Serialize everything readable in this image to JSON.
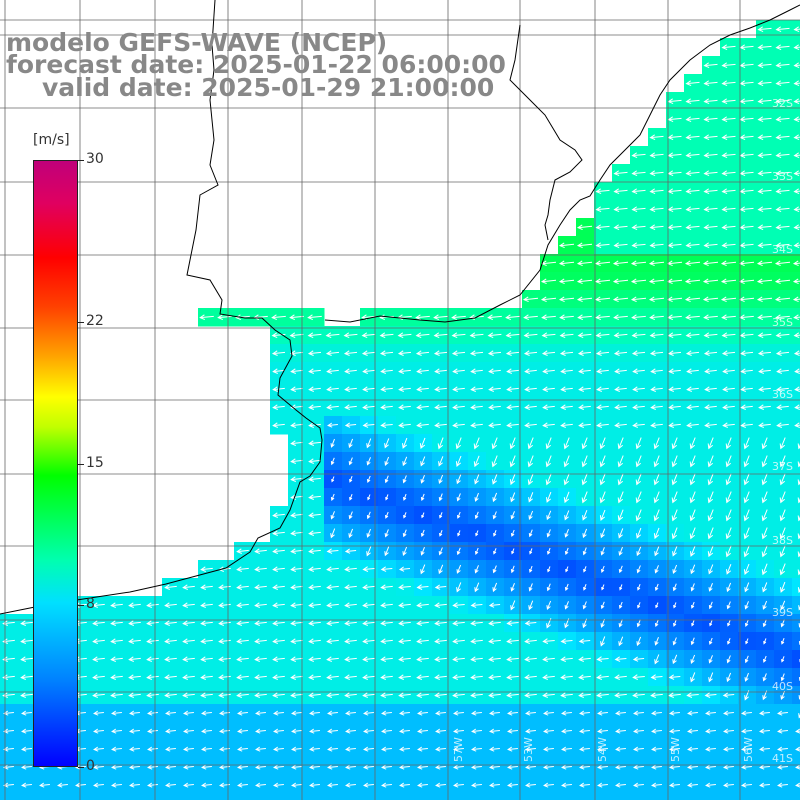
{
  "title": {
    "line1": "modelo GEFS-WAVE (NCEP)",
    "line2": "forecast date: 2025-01-22 06:00:00",
    "line3": "valid date: 2025-01-29 21:00:00"
  },
  "colorbar": {
    "unit": "[m/s]",
    "min": 0,
    "max": 30,
    "tick_labels": [
      "30",
      "22",
      "15",
      "8",
      "0"
    ],
    "tick_values": [
      30,
      22,
      15,
      8,
      0
    ]
  },
  "map": {
    "lat_labels": [
      "32S",
      "33S",
      "34S",
      "35S",
      "36S",
      "37S",
      "38S",
      "39S",
      "40S",
      "41S"
    ],
    "lon_labels": [
      "53W",
      "54W",
      "55W",
      "56W",
      "57W"
    ],
    "colors": {
      "ocean_low": "#0000ff",
      "ocean_mid": "#00c8ff",
      "ocean_high": "#00ff80",
      "land": "#ffffff",
      "coast": "#000000",
      "grid": "#666666",
      "arrow": "#ffffff"
    }
  }
}
